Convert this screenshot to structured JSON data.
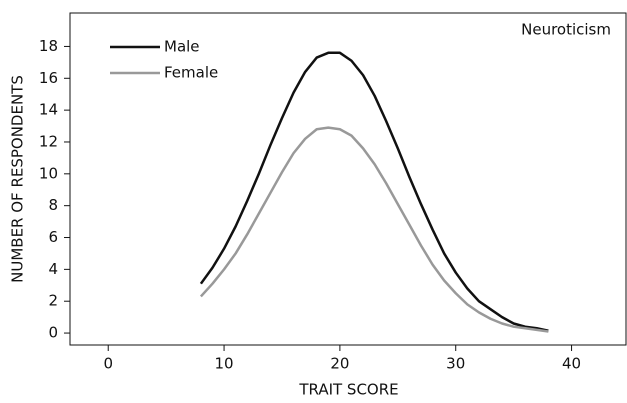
{
  "chart_data": {
    "type": "line",
    "annotation": "Neuroticism",
    "x_label": "TRAIT SCORE",
    "y_label": "NUMBER OF RESPONDENTS",
    "x": [
      8,
      9,
      10,
      11,
      12,
      13,
      14,
      15,
      16,
      17,
      18,
      19,
      20,
      21,
      22,
      23,
      24,
      25,
      26,
      27,
      28,
      29,
      30,
      31,
      32,
      33,
      34,
      35,
      36,
      37,
      38
    ],
    "series": [
      {
        "name": "Male",
        "color": "#111111",
        "values": [
          3.1,
          4.1,
          5.3,
          6.7,
          8.3,
          10.0,
          11.8,
          13.5,
          15.1,
          16.4,
          17.3,
          17.6,
          17.6,
          17.1,
          16.2,
          14.9,
          13.3,
          11.6,
          9.8,
          8.1,
          6.5,
          5.0,
          3.8,
          2.8,
          2.0,
          1.5,
          1.0,
          0.6,
          0.4,
          0.3,
          0.15
        ]
      },
      {
        "name": "Female",
        "color": "#999999",
        "values": [
          2.3,
          3.1,
          4.0,
          5.0,
          6.2,
          7.5,
          8.8,
          10.1,
          11.3,
          12.2,
          12.8,
          12.9,
          12.8,
          12.4,
          11.6,
          10.6,
          9.4,
          8.1,
          6.8,
          5.5,
          4.3,
          3.3,
          2.5,
          1.8,
          1.3,
          0.9,
          0.6,
          0.4,
          0.3,
          0.2,
          0.1
        ]
      }
    ],
    "xlim": [
      -3.3,
      44.7
    ],
    "xticks": [
      0,
      10,
      20,
      30,
      40
    ],
    "ylim": [
      -0.75,
      20.1
    ],
    "yticks": [
      0,
      2,
      4,
      6,
      8,
      10,
      12,
      14,
      16,
      18
    ],
    "legend": "upper left",
    "grid": false
  }
}
